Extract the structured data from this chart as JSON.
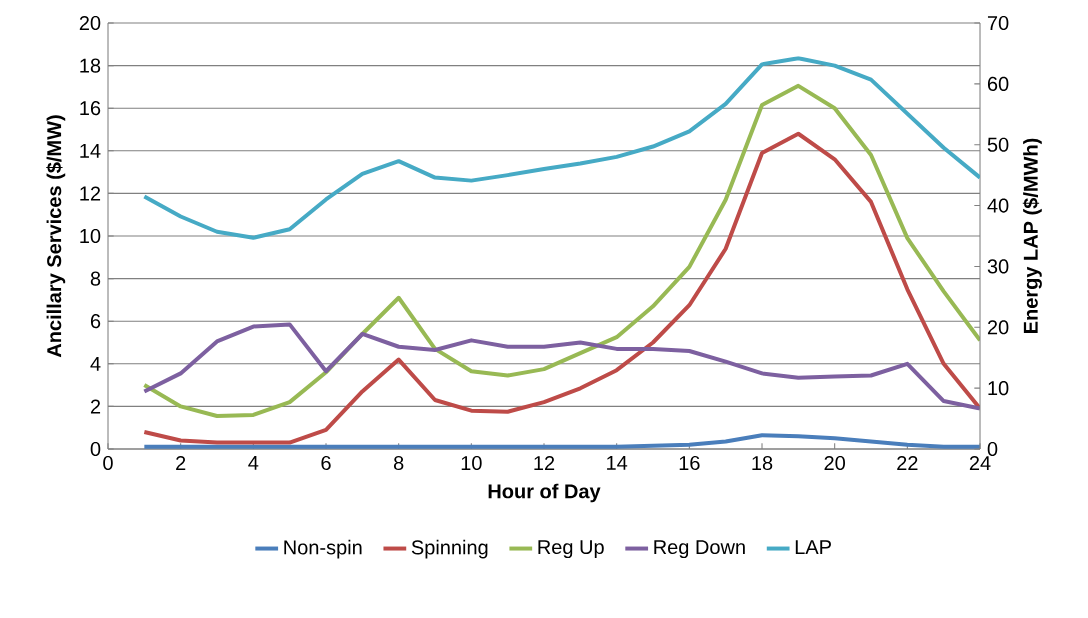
{
  "chart_data": {
    "type": "line",
    "xlabel": "Hour of Day",
    "ylabel": "Ancillary Services ($/MW)",
    "y2label": "Energy LAP ($/MWh)",
    "x": [
      1,
      2,
      3,
      4,
      5,
      6,
      7,
      8,
      9,
      10,
      11,
      12,
      13,
      14,
      15,
      16,
      17,
      18,
      19,
      20,
      21,
      22,
      23,
      24
    ],
    "xlim": [
      0,
      24
    ],
    "xticks": [
      0,
      2,
      4,
      6,
      8,
      10,
      12,
      14,
      16,
      18,
      20,
      22,
      24
    ],
    "ylim": [
      0,
      20
    ],
    "yticks": [
      0,
      2,
      4,
      6,
      8,
      10,
      12,
      14,
      16,
      18,
      20
    ],
    "y2lim": [
      0,
      70
    ],
    "y2ticks": [
      0,
      10,
      20,
      30,
      40,
      50,
      60,
      70
    ],
    "grid": "y",
    "legend": "bottom",
    "marker": "none",
    "line_style": "solid",
    "series": [
      {
        "name": "Non-spin",
        "color": "#4a7ebb",
        "values": [
          0.1,
          0.1,
          0.1,
          0.1,
          0.1,
          0.1,
          0.1,
          0.1,
          0.1,
          0.1,
          0.1,
          0.1,
          0.1,
          0.1,
          0.15,
          0.2,
          0.35,
          0.65,
          0.6,
          0.5,
          0.35,
          0.2,
          0.1,
          0.1
        ]
      },
      {
        "name": "Spinning",
        "color": "#be4b48",
        "values": [
          0.8,
          0.4,
          0.3,
          0.3,
          0.3,
          0.9,
          2.7,
          4.2,
          2.3,
          1.8,
          1.75,
          2.2,
          2.85,
          3.7,
          5.0,
          6.75,
          9.4,
          13.9,
          14.8,
          13.6,
          11.6,
          7.5,
          4.0,
          1.9
        ]
      },
      {
        "name": "Reg Up",
        "color": "#98b954",
        "values": [
          3.0,
          2.0,
          1.55,
          1.6,
          2.2,
          3.6,
          5.4,
          7.1,
          4.7,
          3.65,
          3.45,
          3.75,
          4.5,
          5.25,
          6.7,
          8.55,
          11.7,
          16.15,
          17.05,
          16.0,
          13.8,
          9.9,
          7.4,
          5.1
        ]
      },
      {
        "name": "Reg Down",
        "color": "#7d60a0",
        "values": [
          2.7,
          3.55,
          5.05,
          5.75,
          5.85,
          3.65,
          5.4,
          4.8,
          4.65,
          5.1,
          4.8,
          4.8,
          5.0,
          4.7,
          4.7,
          4.6,
          4.1,
          3.55,
          3.35,
          3.4,
          3.45,
          4.0,
          2.25,
          1.9
        ]
      },
      {
        "name": "LAP",
        "color": "#46aac5",
        "axis": "y2",
        "values": [
          41.5,
          38.2,
          35.7,
          34.7,
          36.1,
          41,
          45.2,
          47.3,
          44.6,
          44.1,
          45,
          46,
          46.9,
          48,
          49.7,
          52.2,
          56.7,
          63.2,
          64.2,
          63,
          60.7,
          55.1,
          49.5,
          44.6
        ]
      }
    ]
  }
}
